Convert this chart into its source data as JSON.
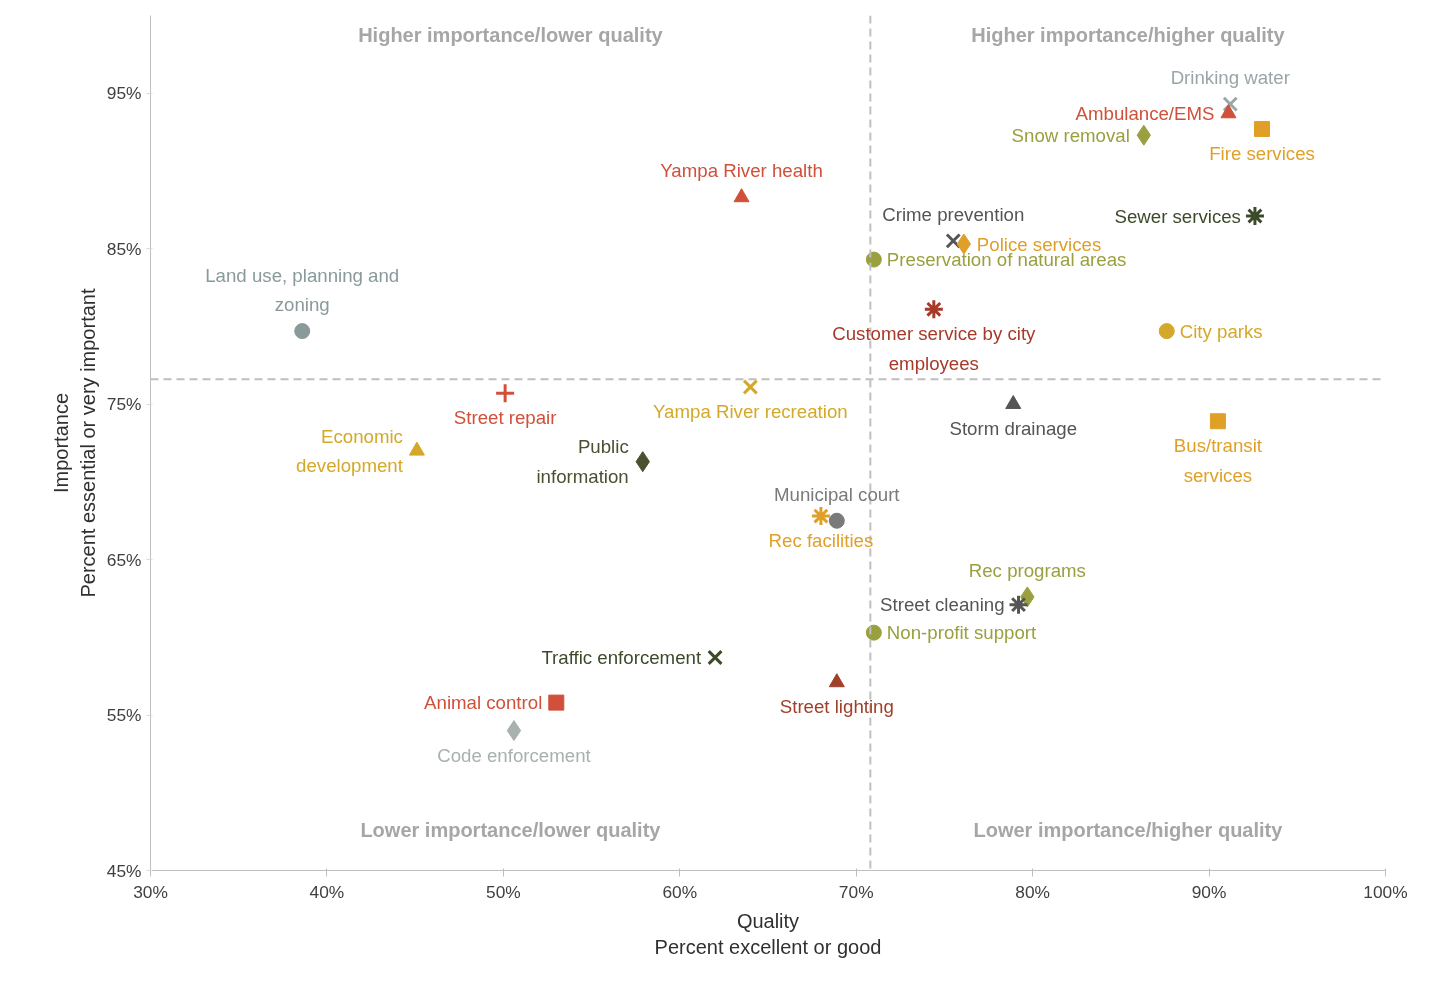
{
  "chart_data": {
    "type": "scatter",
    "xlabel": "Quality\nPercent excellent or good",
    "ylabel": "Importance\nPercent essential or very important",
    "xlim": [
      30,
      100
    ],
    "ylim": [
      45,
      100
    ],
    "xticks": [
      {
        "value": 30,
        "label": "30%"
      },
      {
        "value": 40,
        "label": "40%"
      },
      {
        "value": 50,
        "label": "50%"
      },
      {
        "value": 60,
        "label": "60%"
      },
      {
        "value": 70,
        "label": "70%"
      },
      {
        "value": 80,
        "label": "80%"
      },
      {
        "value": 90,
        "label": "90%"
      },
      {
        "value": 100,
        "label": "100%"
      }
    ],
    "yticks": [
      {
        "value": 45,
        "label": "45%"
      },
      {
        "value": 55,
        "label": "55%"
      },
      {
        "value": 65,
        "label": "65%"
      },
      {
        "value": 75,
        "label": "75%"
      },
      {
        "value": 85,
        "label": "85%"
      },
      {
        "value": 95,
        "label": "95%"
      }
    ],
    "grid": false,
    "legend": false,
    "ref_lines": [
      {
        "axis": "x",
        "value": 70.8,
        "color": "#bfbfbf",
        "line_style": "dashed"
      },
      {
        "axis": "y",
        "value": 76.6,
        "color": "#bfbfbf",
        "line_style": "dashed"
      }
    ],
    "annotations": [
      "Higher importance/lower quality",
      "Higher importance/higher quality",
      "Lower importance/lower quality",
      "Lower importance/higher quality"
    ],
    "series": [
      {
        "name": "Drinking water",
        "color": "#9aa5a8",
        "marker": "cross",
        "x": [
          91.2
        ],
        "values": [
          94.3
        ]
      },
      {
        "name": "Ambulance/EMS",
        "color": "#d0503a",
        "marker": "triangle",
        "x": [
          91.1
        ],
        "values": [
          93.7
        ]
      },
      {
        "name": "Fire services",
        "color": "#e0a028",
        "marker": "square",
        "x": [
          93.0
        ],
        "values": [
          92.7
        ]
      },
      {
        "name": "Snow removal",
        "color": "#9aa040",
        "marker": "diamond",
        "x": [
          86.3
        ],
        "values": [
          92.3
        ]
      },
      {
        "name": "Yampa River health",
        "color": "#d0503a",
        "marker": "triangle",
        "x": [
          63.5
        ],
        "values": [
          88.3
        ]
      },
      {
        "name": "Sewer services",
        "color": "#3d4a2a",
        "marker": "cross",
        "x": [
          92.6
        ],
        "values": [
          87.1
        ]
      },
      {
        "name": "Crime prevention",
        "color": "#555555",
        "marker": "cross",
        "x": [
          75.5
        ],
        "values": [
          85.5
        ]
      },
      {
        "name": "Police services",
        "color": "#e0a028",
        "marker": "diamond",
        "x": [
          76.1
        ],
        "values": [
          85.3
        ]
      },
      {
        "name": "Preservation of natural areas",
        "color": "#9aa040",
        "marker": "circle",
        "x": [
          71.0
        ],
        "values": [
          84.3
        ]
      },
      {
        "name": "Customer service by city\nemployees",
        "color": "#a83a2a",
        "marker": "cross",
        "x": [
          74.4
        ],
        "values": [
          81.1
        ]
      },
      {
        "name": "City parks",
        "color": "#d4a828",
        "marker": "circle",
        "x": [
          87.6
        ],
        "values": [
          79.7
        ]
      },
      {
        "name": "Land use, planning and\nzoning",
        "color": "#8a9a9a",
        "marker": "circle",
        "x": [
          38.6
        ],
        "values": [
          79.7
        ]
      },
      {
        "name": "Street repair",
        "color": "#d0503a",
        "marker": "cross",
        "x": [
          50.1
        ],
        "values": [
          75.7
        ]
      },
      {
        "name": "Yampa River recreation",
        "color": "#d4a828",
        "marker": "cross",
        "x": [
          64.0
        ],
        "values": [
          76.1
        ]
      },
      {
        "name": "Storm drainage",
        "color": "#555555",
        "marker": "triangle",
        "x": [
          78.9
        ],
        "values": [
          75.0
        ]
      },
      {
        "name": "Bus/transit\nservices",
        "color": "#e0a028",
        "marker": "square",
        "x": [
          90.5
        ],
        "values": [
          73.9
        ]
      },
      {
        "name": "Economic\ndevelopment",
        "color": "#d4a828",
        "marker": "triangle",
        "x": [
          45.1
        ],
        "values": [
          72.0
        ]
      },
      {
        "name": "Public\ninformation",
        "color": "#4a5030",
        "marker": "diamond",
        "x": [
          57.9
        ],
        "values": [
          71.3
        ]
      },
      {
        "name": "Municipal court",
        "color": "#7a7a7a",
        "marker": "circle",
        "x": [
          68.9
        ],
        "values": [
          67.5
        ]
      },
      {
        "name": "Rec facilities",
        "color": "#e0a028",
        "marker": "cross",
        "x": [
          68.0
        ],
        "values": [
          67.8
        ]
      },
      {
        "name": "Rec programs",
        "color": "#9aa040",
        "marker": "diamond",
        "x": [
          79.7
        ],
        "values": [
          62.6
        ]
      },
      {
        "name": "Street cleaning",
        "color": "#555555",
        "marker": "cross",
        "x": [
          79.2
        ],
        "values": [
          62.1
        ]
      },
      {
        "name": "Non-profit support",
        "color": "#9aa040",
        "marker": "circle",
        "x": [
          71.0
        ],
        "values": [
          60.3
        ]
      },
      {
        "name": "Traffic enforcement",
        "color": "#3d4a2a",
        "marker": "cross",
        "x": [
          62.0
        ],
        "values": [
          58.7
        ]
      },
      {
        "name": "Street lighting",
        "color": "#a0402a",
        "marker": "triangle",
        "x": [
          68.9
        ],
        "values": [
          57.1
        ]
      },
      {
        "name": "Animal control",
        "color": "#d0503a",
        "marker": "square",
        "x": [
          53.0
        ],
        "values": [
          55.8
        ]
      },
      {
        "name": "Code enforcement",
        "color": "#a8b0b0",
        "marker": "diamond",
        "x": [
          50.6
        ],
        "values": [
          54.0
        ]
      }
    ]
  }
}
